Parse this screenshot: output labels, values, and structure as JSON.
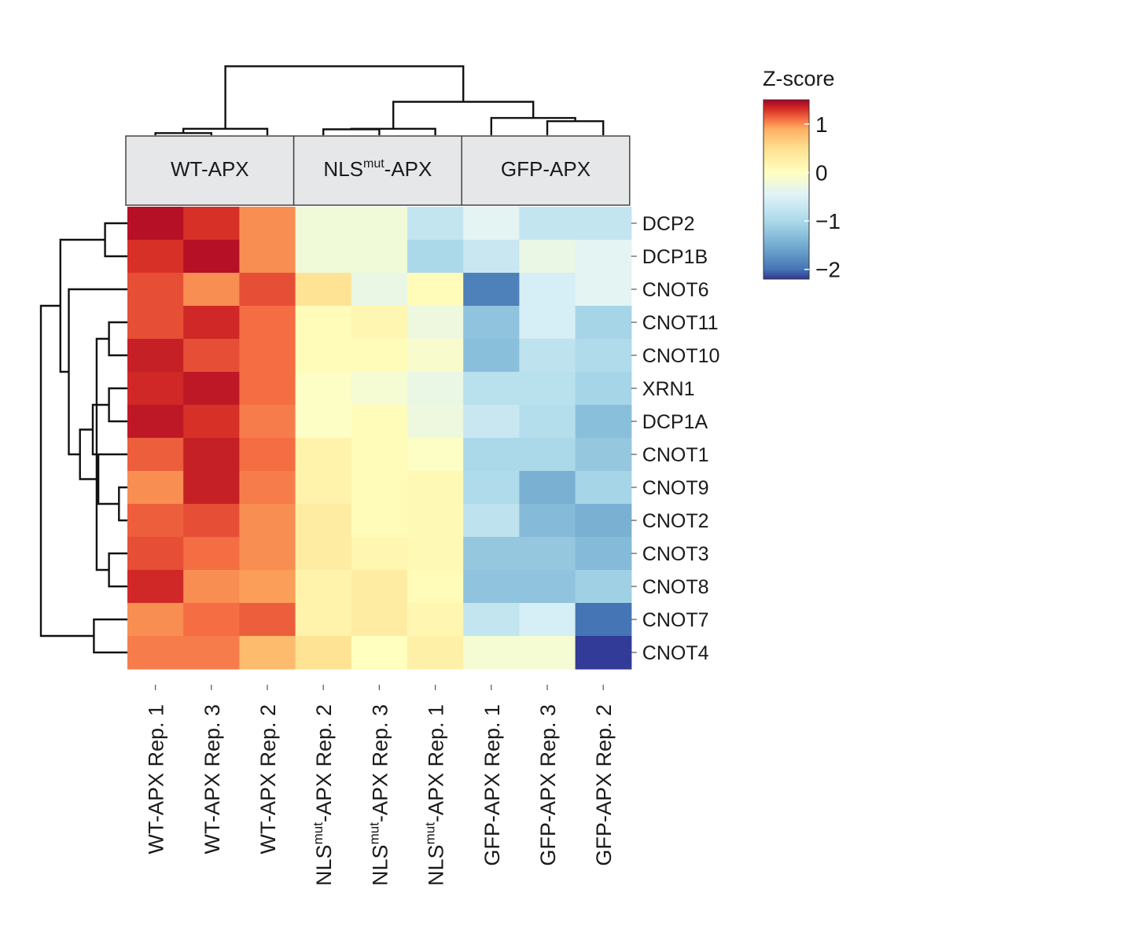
{
  "chart_data": {
    "type": "heatmap",
    "title": "",
    "groups": [
      {
        "name": "WT-APX",
        "columns": [
          0,
          1,
          2
        ]
      },
      {
        "name": "NLS",
        "sup": "mut",
        "suffix": "-APX",
        "columns": [
          3,
          4,
          5
        ]
      },
      {
        "name": "GFP-APX",
        "columns": [
          6,
          7,
          8
        ]
      }
    ],
    "columns": [
      {
        "pre": "WT-APX Rep. 1",
        "sup": "",
        "post": ""
      },
      {
        "pre": "WT-APX Rep. 3",
        "sup": "",
        "post": ""
      },
      {
        "pre": "WT-APX Rep. 2",
        "sup": "",
        "post": ""
      },
      {
        "pre": "NLS",
        "sup": "mut",
        "post": "-APX Rep. 2"
      },
      {
        "pre": "NLS",
        "sup": "mut",
        "post": "-APX Rep. 3"
      },
      {
        "pre": "NLS",
        "sup": "mut",
        "post": "-APX Rep. 1"
      },
      {
        "pre": "GFP-APX Rep. 1",
        "sup": "",
        "post": ""
      },
      {
        "pre": "GFP-APX Rep. 3",
        "sup": "",
        "post": ""
      },
      {
        "pre": "GFP-APX Rep. 2",
        "sup": "",
        "post": ""
      }
    ],
    "rows": [
      "DCP2",
      "DCP1B",
      "CNOT6",
      "CNOT11",
      "CNOT10",
      "XRN1",
      "DCP1A",
      "CNOT1",
      "CNOT9",
      "CNOT2",
      "CNOT3",
      "CNOT8",
      "CNOT7",
      "CNOT4"
    ],
    "values": [
      [
        1.5,
        1.3,
        1.0,
        -0.2,
        -0.2,
        -0.75,
        -0.4,
        -0.75,
        -0.75
      ],
      [
        1.3,
        1.5,
        1.0,
        -0.2,
        -0.2,
        -1.0,
        -0.7,
        -0.3,
        -0.4
      ],
      [
        1.2,
        1.0,
        1.2,
        0.45,
        -0.3,
        0.05,
        -1.9,
        -0.55,
        -0.4
      ],
      [
        1.2,
        1.35,
        1.1,
        0.05,
        0.15,
        -0.25,
        -1.25,
        -0.55,
        -1.05
      ],
      [
        1.4,
        1.2,
        1.1,
        0.05,
        0.05,
        -0.1,
        -1.3,
        -0.8,
        -0.95
      ],
      [
        1.35,
        1.45,
        1.1,
        -0.05,
        -0.15,
        -0.3,
        -0.85,
        -0.85,
        -1.05
      ],
      [
        1.45,
        1.3,
        1.05,
        -0.05,
        0.05,
        -0.25,
        -0.7,
        -0.9,
        -1.3
      ],
      [
        1.15,
        1.4,
        1.1,
        0.2,
        0.05,
        -0.05,
        -1.0,
        -1.0,
        -1.2
      ],
      [
        1.0,
        1.4,
        1.05,
        0.2,
        0.05,
        0.1,
        -0.95,
        -1.45,
        -1.05
      ],
      [
        1.15,
        1.2,
        1.0,
        0.3,
        0.05,
        0.1,
        -0.8,
        -1.35,
        -1.45
      ],
      [
        1.2,
        1.1,
        1.0,
        0.3,
        0.15,
        0.1,
        -1.2,
        -1.2,
        -1.35
      ],
      [
        1.35,
        1.0,
        0.95,
        0.2,
        0.3,
        0.05,
        -1.25,
        -1.25,
        -1.1
      ],
      [
        1.0,
        1.1,
        1.15,
        0.2,
        0.3,
        0.15,
        -0.75,
        -0.55,
        -2.0
      ],
      [
        1.05,
        1.05,
        0.8,
        0.45,
        0.0,
        0.25,
        -0.15,
        -0.15,
        -2.55
      ]
    ],
    "row_dendrogram": {
      "merges": [
        [
          0,
          1,
          0.4
        ],
        [
          3,
          4,
          0.33
        ],
        [
          5,
          6,
          0.33
        ],
        [
          8,
          9,
          0.15
        ],
        [
          10,
          11,
          0.33
        ],
        [
          12,
          13,
          0.6
        ],
        [
          "m3",
          7,
          0.52
        ],
        [
          "m4",
          "m1",
          0.55
        ],
        [
          "m2",
          "m7",
          0.62
        ],
        [
          "m8",
          "m6",
          0.85
        ],
        [
          "m9",
          2,
          1.05
        ],
        [
          "m10",
          "m0",
          1.2
        ],
        [
          "m11",
          "m5",
          1.55
        ]
      ]
    },
    "column_dendrogram": {
      "merges": [
        [
          0,
          1,
          0.2
        ],
        [
          "m0",
          2,
          0.6
        ],
        [
          3,
          4,
          0.55
        ],
        [
          "m2",
          5,
          0.6
        ],
        [
          7,
          8,
          1.3
        ],
        [
          6,
          "m4",
          1.6
        ],
        [
          "m3",
          "m5",
          3.1
        ],
        [
          "m1",
          "m6",
          6.4
        ]
      ]
    },
    "colorbar": {
      "title": "Z-score",
      "ticks": [
        1,
        0,
        -1,
        -2
      ],
      "tick_labels": [
        "1",
        "0",
        "−1",
        "−2"
      ],
      "range": [
        -2.2,
        1.5
      ]
    },
    "colormap": {
      "stops": [
        [
          -2.6,
          "#313695"
        ],
        [
          -2.0,
          "#4575b4"
        ],
        [
          -1.5,
          "#74add1"
        ],
        [
          -1.0,
          "#abd9e9"
        ],
        [
          -0.45,
          "#e0f3f8"
        ],
        [
          0.0,
          "#ffffbf"
        ],
        [
          0.5,
          "#fee090"
        ],
        [
          0.9,
          "#fdae61"
        ],
        [
          1.1,
          "#f46d43"
        ],
        [
          1.3,
          "#d73027"
        ],
        [
          1.6,
          "#a50026"
        ]
      ]
    }
  }
}
